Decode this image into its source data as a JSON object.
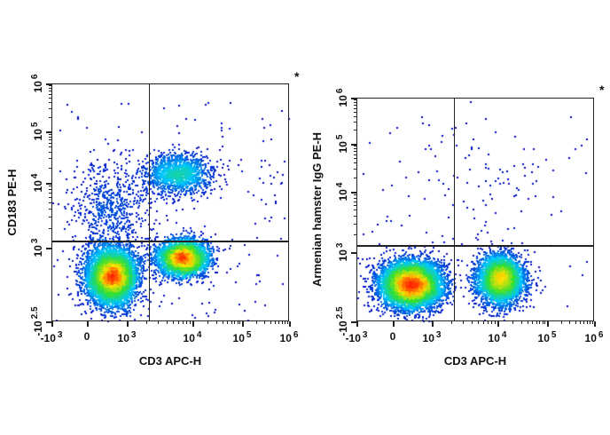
{
  "chart_data": [
    {
      "type": "scatter",
      "subtype": "flow-cytometry-density",
      "title": "",
      "corner_mark": "*",
      "xlabel": "CD3 APC-H",
      "ylabel": "CD183 PE-H",
      "x_ticks": [
        {
          "value": -1000,
          "base": "-10",
          "exp": "3"
        },
        {
          "value": 0,
          "base": "0",
          "exp": ""
        },
        {
          "value": 1000,
          "base": "10",
          "exp": "3"
        },
        {
          "value": 10000,
          "base": "10",
          "exp": "4"
        },
        {
          "value": 100000,
          "base": "10",
          "exp": "5"
        },
        {
          "value": 1000000,
          "base": "10",
          "exp": "6"
        }
      ],
      "y_ticks": [
        {
          "value": -316,
          "base": "-10",
          "exp": "2.5"
        },
        {
          "value": 1000,
          "base": "10",
          "exp": "3"
        },
        {
          "value": 10000,
          "base": "10",
          "exp": "4"
        },
        {
          "value": 100000,
          "base": "10",
          "exp": "5"
        },
        {
          "value": 1000000,
          "base": "10",
          "exp": "6"
        }
      ],
      "xlim": [
        -1000,
        1000000
      ],
      "ylim": [
        -316,
        1000000
      ],
      "scale": "biexponential",
      "quadrant_gate": {
        "x": 2200,
        "y": 1250
      },
      "populations": [
        {
          "quadrant": "CD3- CD183-",
          "center": [
            600,
            500
          ],
          "relative_size": 0.45
        },
        {
          "quadrant": "CD3+ CD183-",
          "center": [
            7000,
            830
          ],
          "relative_size": 0.3
        },
        {
          "quadrant": "CD3+ CD183+",
          "center": [
            6000,
            15500
          ],
          "relative_size": 0.12
        },
        {
          "quadrant": "CD3- CD183+",
          "center": [
            600,
            4000
          ],
          "relative_size": 0.06
        }
      ],
      "colormap": [
        "#0000c8",
        "#00c8ff",
        "#30e030",
        "#ffe000",
        "#ff2000"
      ]
    },
    {
      "type": "scatter",
      "subtype": "flow-cytometry-density",
      "title": "",
      "corner_mark": "*",
      "xlabel": "CD3 APC-H",
      "ylabel": "Armenian hamster IgG PE-H",
      "x_ticks": [
        {
          "value": -1000,
          "base": "-10",
          "exp": "3"
        },
        {
          "value": 0,
          "base": "0",
          "exp": ""
        },
        {
          "value": 1000,
          "base": "10",
          "exp": "3"
        },
        {
          "value": 10000,
          "base": "10",
          "exp": "4"
        },
        {
          "value": 100000,
          "base": "10",
          "exp": "5"
        },
        {
          "value": 1000000,
          "base": "10",
          "exp": "6"
        }
      ],
      "y_ticks": [
        {
          "value": -316,
          "base": "-10",
          "exp": "2.5"
        },
        {
          "value": 1000,
          "base": "10",
          "exp": "3"
        },
        {
          "value": 10000,
          "base": "10",
          "exp": "4"
        },
        {
          "value": 100000,
          "base": "10",
          "exp": "5"
        },
        {
          "value": 1000000,
          "base": "10",
          "exp": "6"
        }
      ],
      "xlim": [
        -1000,
        1000000
      ],
      "ylim": [
        -316,
        1000000
      ],
      "scale": "biexponential",
      "quadrant_gate": {
        "x": 2200,
        "y": 1270
      },
      "populations": [
        {
          "quadrant": "CD3- isotype-",
          "center": [
            450,
            400
          ],
          "relative_size": 0.6
        },
        {
          "quadrant": "CD3+ isotype-",
          "center": [
            11000,
            500
          ],
          "relative_size": 0.38
        },
        {
          "quadrant": "isotype+ (sparse)",
          "center": [
            5000,
            20000
          ],
          "relative_size": 0.02
        }
      ],
      "colormap": [
        "#0000c8",
        "#00c8ff",
        "#30e030",
        "#ffe000",
        "#ff2000"
      ]
    }
  ]
}
